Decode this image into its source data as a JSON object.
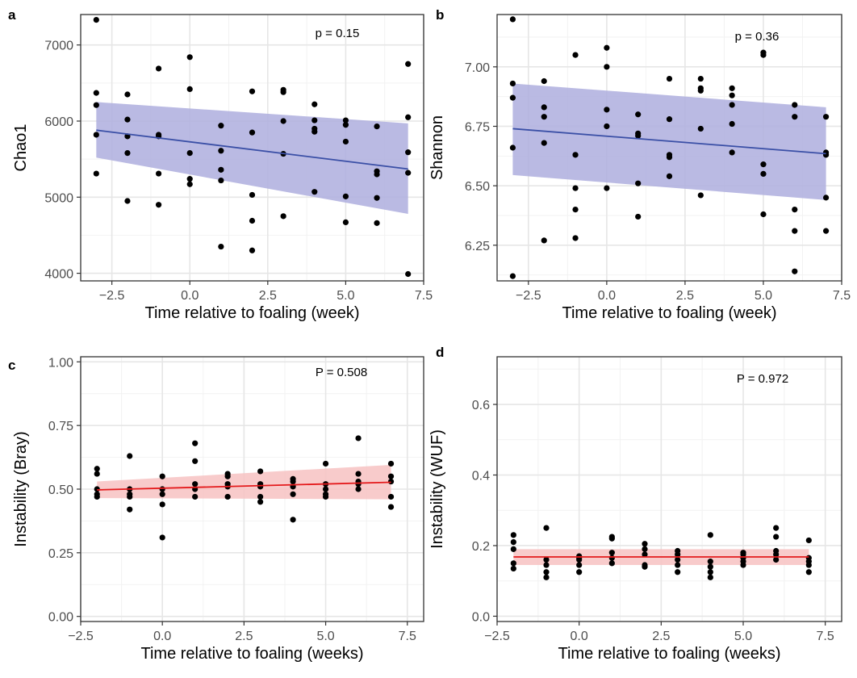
{
  "chart_data": [
    {
      "panel": "a",
      "type": "scatter",
      "xlabel": "Time relative to foaling (week)",
      "ylabel": "Chao1",
      "annotation": "p = 0.15",
      "xlim": [
        -3.5,
        7.5
      ],
      "ylim": [
        3900,
        7400
      ],
      "xticks": [
        -2.5,
        0.0,
        2.5,
        5.0,
        7.5
      ],
      "xtick_labels": [
        "−2.5",
        "0.0",
        "2.5",
        "5.0",
        "7.5"
      ],
      "yticks": [
        4000,
        5000,
        6000,
        7000
      ],
      "ytick_labels": [
        "4000",
        "5000",
        "6000",
        "7000"
      ],
      "grid": true,
      "point_color": "#000000",
      "fit": {
        "x": [
          -3,
          7
        ],
        "y": [
          5880,
          5370
        ],
        "line_color": "#3a4fa6",
        "band_color": "#aeaede",
        "band_lower": [
          5520,
          4780
        ],
        "band_upper": [
          6250,
          5970
        ]
      },
      "points": [
        [
          -3,
          7330
        ],
        [
          -3,
          6370
        ],
        [
          -3,
          6210
        ],
        [
          -3,
          5820
        ],
        [
          -3,
          5310
        ],
        [
          -2,
          6350
        ],
        [
          -2,
          6020
        ],
        [
          -2,
          5800
        ],
        [
          -2,
          5580
        ],
        [
          -2,
          4950
        ],
        [
          -1,
          6690
        ],
        [
          -1,
          5820
        ],
        [
          -1,
          5800
        ],
        [
          -1,
          5310
        ],
        [
          -1,
          4900
        ],
        [
          0,
          6840
        ],
        [
          0,
          6420
        ],
        [
          0,
          5580
        ],
        [
          0,
          5240
        ],
        [
          0,
          5170
        ],
        [
          1,
          5940
        ],
        [
          1,
          5610
        ],
        [
          1,
          5360
        ],
        [
          1,
          5220
        ],
        [
          1,
          4350
        ],
        [
          2,
          6390
        ],
        [
          2,
          5850
        ],
        [
          2,
          5030
        ],
        [
          2,
          4690
        ],
        [
          2,
          4300
        ],
        [
          3,
          6410
        ],
        [
          3,
          6380
        ],
        [
          3,
          6000
        ],
        [
          3,
          5570
        ],
        [
          3,
          4750
        ],
        [
          4,
          6220
        ],
        [
          4,
          6010
        ],
        [
          4,
          5900
        ],
        [
          4,
          5860
        ],
        [
          4,
          5070
        ],
        [
          5,
          6010
        ],
        [
          5,
          5950
        ],
        [
          5,
          5730
        ],
        [
          5,
          5010
        ],
        [
          5,
          4670
        ],
        [
          6,
          5930
        ],
        [
          6,
          5340
        ],
        [
          6,
          5300
        ],
        [
          6,
          4990
        ],
        [
          6,
          4660
        ],
        [
          7,
          6750
        ],
        [
          7,
          6050
        ],
        [
          7,
          5590
        ],
        [
          7,
          5320
        ],
        [
          7,
          3990
        ]
      ]
    },
    {
      "panel": "b",
      "type": "scatter",
      "xlabel": "Time relative to foaling (week)",
      "ylabel": "Shannon",
      "annotation": "p = 0.36",
      "xlim": [
        -3.5,
        7.5
      ],
      "ylim": [
        6.1,
        7.22
      ],
      "xticks": [
        -2.5,
        0.0,
        2.5,
        5.0,
        7.5
      ],
      "xtick_labels": [
        "−2.5",
        "0.0",
        "2.5",
        "5.0",
        "7.5"
      ],
      "yticks": [
        6.25,
        6.5,
        6.75,
        7.0
      ],
      "ytick_labels": [
        "6.25",
        "6.50",
        "6.75",
        "7.00"
      ],
      "grid": true,
      "point_color": "#000000",
      "fit": {
        "x": [
          -3,
          7
        ],
        "y": [
          6.74,
          6.635
        ],
        "line_color": "#3a4fa6",
        "band_color": "#aeaede",
        "band_lower": [
          6.545,
          6.44
        ],
        "band_upper": [
          6.93,
          6.83
        ]
      },
      "points": [
        [
          -3,
          7.2
        ],
        [
          -3,
          6.93
        ],
        [
          -3,
          6.87
        ],
        [
          -3,
          6.66
        ],
        [
          -3,
          6.12
        ],
        [
          -2,
          6.94
        ],
        [
          -2,
          6.83
        ],
        [
          -2,
          6.79
        ],
        [
          -2,
          6.68
        ],
        [
          -2,
          6.27
        ],
        [
          -1,
          7.05
        ],
        [
          -1,
          6.63
        ],
        [
          -1,
          6.49
        ],
        [
          -1,
          6.4
        ],
        [
          -1,
          6.28
        ],
        [
          0,
          7.08
        ],
        [
          0,
          7.0
        ],
        [
          0,
          6.82
        ],
        [
          0,
          6.75
        ],
        [
          0,
          6.49
        ],
        [
          1,
          6.8
        ],
        [
          1,
          6.72
        ],
        [
          1,
          6.71
        ],
        [
          1,
          6.51
        ],
        [
          1,
          6.37
        ],
        [
          2,
          6.95
        ],
        [
          2,
          6.78
        ],
        [
          2,
          6.63
        ],
        [
          2,
          6.62
        ],
        [
          2,
          6.54
        ],
        [
          3,
          6.95
        ],
        [
          3,
          6.91
        ],
        [
          3,
          6.9
        ],
        [
          3,
          6.74
        ],
        [
          3,
          6.46
        ],
        [
          4,
          6.91
        ],
        [
          4,
          6.88
        ],
        [
          4,
          6.84
        ],
        [
          4,
          6.76
        ],
        [
          4,
          6.64
        ],
        [
          5,
          7.06
        ],
        [
          5,
          7.05
        ],
        [
          5,
          6.59
        ],
        [
          5,
          6.55
        ],
        [
          5,
          6.38
        ],
        [
          6,
          6.84
        ],
        [
          6,
          6.79
        ],
        [
          6,
          6.4
        ],
        [
          6,
          6.31
        ],
        [
          6,
          6.14
        ],
        [
          7,
          6.79
        ],
        [
          7,
          6.64
        ],
        [
          7,
          6.63
        ],
        [
          7,
          6.45
        ],
        [
          7,
          6.31
        ]
      ]
    },
    {
      "panel": "c",
      "type": "scatter",
      "xlabel": "Time relative to foaling (weeks)",
      "ylabel": "Instability (Bray)",
      "annotation": "P = 0.508",
      "xlim": [
        -2.5,
        8.0
      ],
      "ylim": [
        -0.02,
        1.02
      ],
      "xticks": [
        -2.5,
        0.0,
        2.5,
        5.0,
        7.5
      ],
      "xtick_labels": [
        "−2.5",
        "0.0",
        "2.5",
        "5.0",
        "7.5"
      ],
      "yticks": [
        0.0,
        0.25,
        0.5,
        0.75,
        1.0
      ],
      "ytick_labels": [
        "0.00",
        "0.25",
        "0.50",
        "0.75",
        "1.00"
      ],
      "grid": true,
      "point_color": "#000000",
      "fit": {
        "x": [
          -2,
          7
        ],
        "y": [
          0.497,
          0.527
        ],
        "line_color": "#e41a1c",
        "band_color": "#f7c2c2",
        "band_lower": [
          0.465,
          0.46
        ],
        "band_upper": [
          0.53,
          0.595
        ]
      },
      "points": [
        [
          -2,
          0.58
        ],
        [
          -2,
          0.56
        ],
        [
          -2,
          0.5
        ],
        [
          -2,
          0.48
        ],
        [
          -2,
          0.47
        ],
        [
          -1,
          0.63
        ],
        [
          -1,
          0.5
        ],
        [
          -1,
          0.48
        ],
        [
          -1,
          0.47
        ],
        [
          -1,
          0.42
        ],
        [
          0,
          0.55
        ],
        [
          0,
          0.5
        ],
        [
          0,
          0.48
        ],
        [
          0,
          0.44
        ],
        [
          0,
          0.31
        ],
        [
          1,
          0.68
        ],
        [
          1,
          0.61
        ],
        [
          1,
          0.52
        ],
        [
          1,
          0.5
        ],
        [
          1,
          0.47
        ],
        [
          2,
          0.56
        ],
        [
          2,
          0.55
        ],
        [
          2,
          0.52
        ],
        [
          2,
          0.51
        ],
        [
          2,
          0.47
        ],
        [
          3,
          0.57
        ],
        [
          3,
          0.52
        ],
        [
          3,
          0.51
        ],
        [
          3,
          0.47
        ],
        [
          3,
          0.45
        ],
        [
          4,
          0.54
        ],
        [
          4,
          0.53
        ],
        [
          4,
          0.51
        ],
        [
          4,
          0.48
        ],
        [
          4,
          0.38
        ],
        [
          5,
          0.6
        ],
        [
          5,
          0.52
        ],
        [
          5,
          0.5
        ],
        [
          5,
          0.48
        ],
        [
          5,
          0.47
        ],
        [
          6,
          0.7
        ],
        [
          6,
          0.56
        ],
        [
          6,
          0.53
        ],
        [
          6,
          0.52
        ],
        [
          6,
          0.5
        ],
        [
          7,
          0.6
        ],
        [
          7,
          0.55
        ],
        [
          7,
          0.53
        ],
        [
          7,
          0.47
        ],
        [
          7,
          0.43
        ]
      ]
    },
    {
      "panel": "d",
      "type": "scatter",
      "xlabel": "Time relative to foaling (weeks)",
      "ylabel": "Instability (WUF)",
      "annotation": "P = 0.972",
      "xlim": [
        -2.5,
        8.0
      ],
      "ylim": [
        -0.015,
        0.735
      ],
      "xticks": [
        -2.5,
        0.0,
        2.5,
        5.0,
        7.5
      ],
      "xtick_labels": [
        "−2.5",
        "0.0",
        "2.5",
        "5.0",
        "7.5"
      ],
      "yticks": [
        0.0,
        0.2,
        0.4,
        0.6
      ],
      "ytick_labels": [
        "0.0",
        "0.2",
        "0.4",
        "0.6"
      ],
      "grid": true,
      "point_color": "#000000",
      "fit": {
        "x": [
          -2,
          7
        ],
        "y": [
          0.168,
          0.168
        ],
        "line_color": "#e41a1c",
        "band_color": "#f7c2c2",
        "band_lower": [
          0.145,
          0.145
        ],
        "band_upper": [
          0.19,
          0.19
        ]
      },
      "points": [
        [
          -2,
          0.23
        ],
        [
          -2,
          0.21
        ],
        [
          -2,
          0.19
        ],
        [
          -2,
          0.15
        ],
        [
          -2,
          0.135
        ],
        [
          -1,
          0.25
        ],
        [
          -1,
          0.16
        ],
        [
          -1,
          0.145
        ],
        [
          -1,
          0.125
        ],
        [
          -1,
          0.11
        ],
        [
          0,
          0.17
        ],
        [
          0,
          0.165
        ],
        [
          0,
          0.16
        ],
        [
          0,
          0.145
        ],
        [
          0,
          0.125
        ],
        [
          1,
          0.225
        ],
        [
          1,
          0.22
        ],
        [
          1,
          0.18
        ],
        [
          1,
          0.165
        ],
        [
          1,
          0.15
        ],
        [
          2,
          0.205
        ],
        [
          2,
          0.19
        ],
        [
          2,
          0.175
        ],
        [
          2,
          0.145
        ],
        [
          2,
          0.14
        ],
        [
          3,
          0.185
        ],
        [
          3,
          0.175
        ],
        [
          3,
          0.16
        ],
        [
          3,
          0.145
        ],
        [
          3,
          0.125
        ],
        [
          4,
          0.23
        ],
        [
          4,
          0.155
        ],
        [
          4,
          0.14
        ],
        [
          4,
          0.125
        ],
        [
          4,
          0.11
        ],
        [
          5,
          0.18
        ],
        [
          5,
          0.175
        ],
        [
          5,
          0.165
        ],
        [
          5,
          0.155
        ],
        [
          5,
          0.145
        ],
        [
          6,
          0.25
        ],
        [
          6,
          0.225
        ],
        [
          6,
          0.185
        ],
        [
          6,
          0.175
        ],
        [
          6,
          0.16
        ],
        [
          7,
          0.215
        ],
        [
          7,
          0.165
        ],
        [
          7,
          0.155
        ],
        [
          7,
          0.145
        ],
        [
          7,
          0.125
        ]
      ]
    }
  ]
}
